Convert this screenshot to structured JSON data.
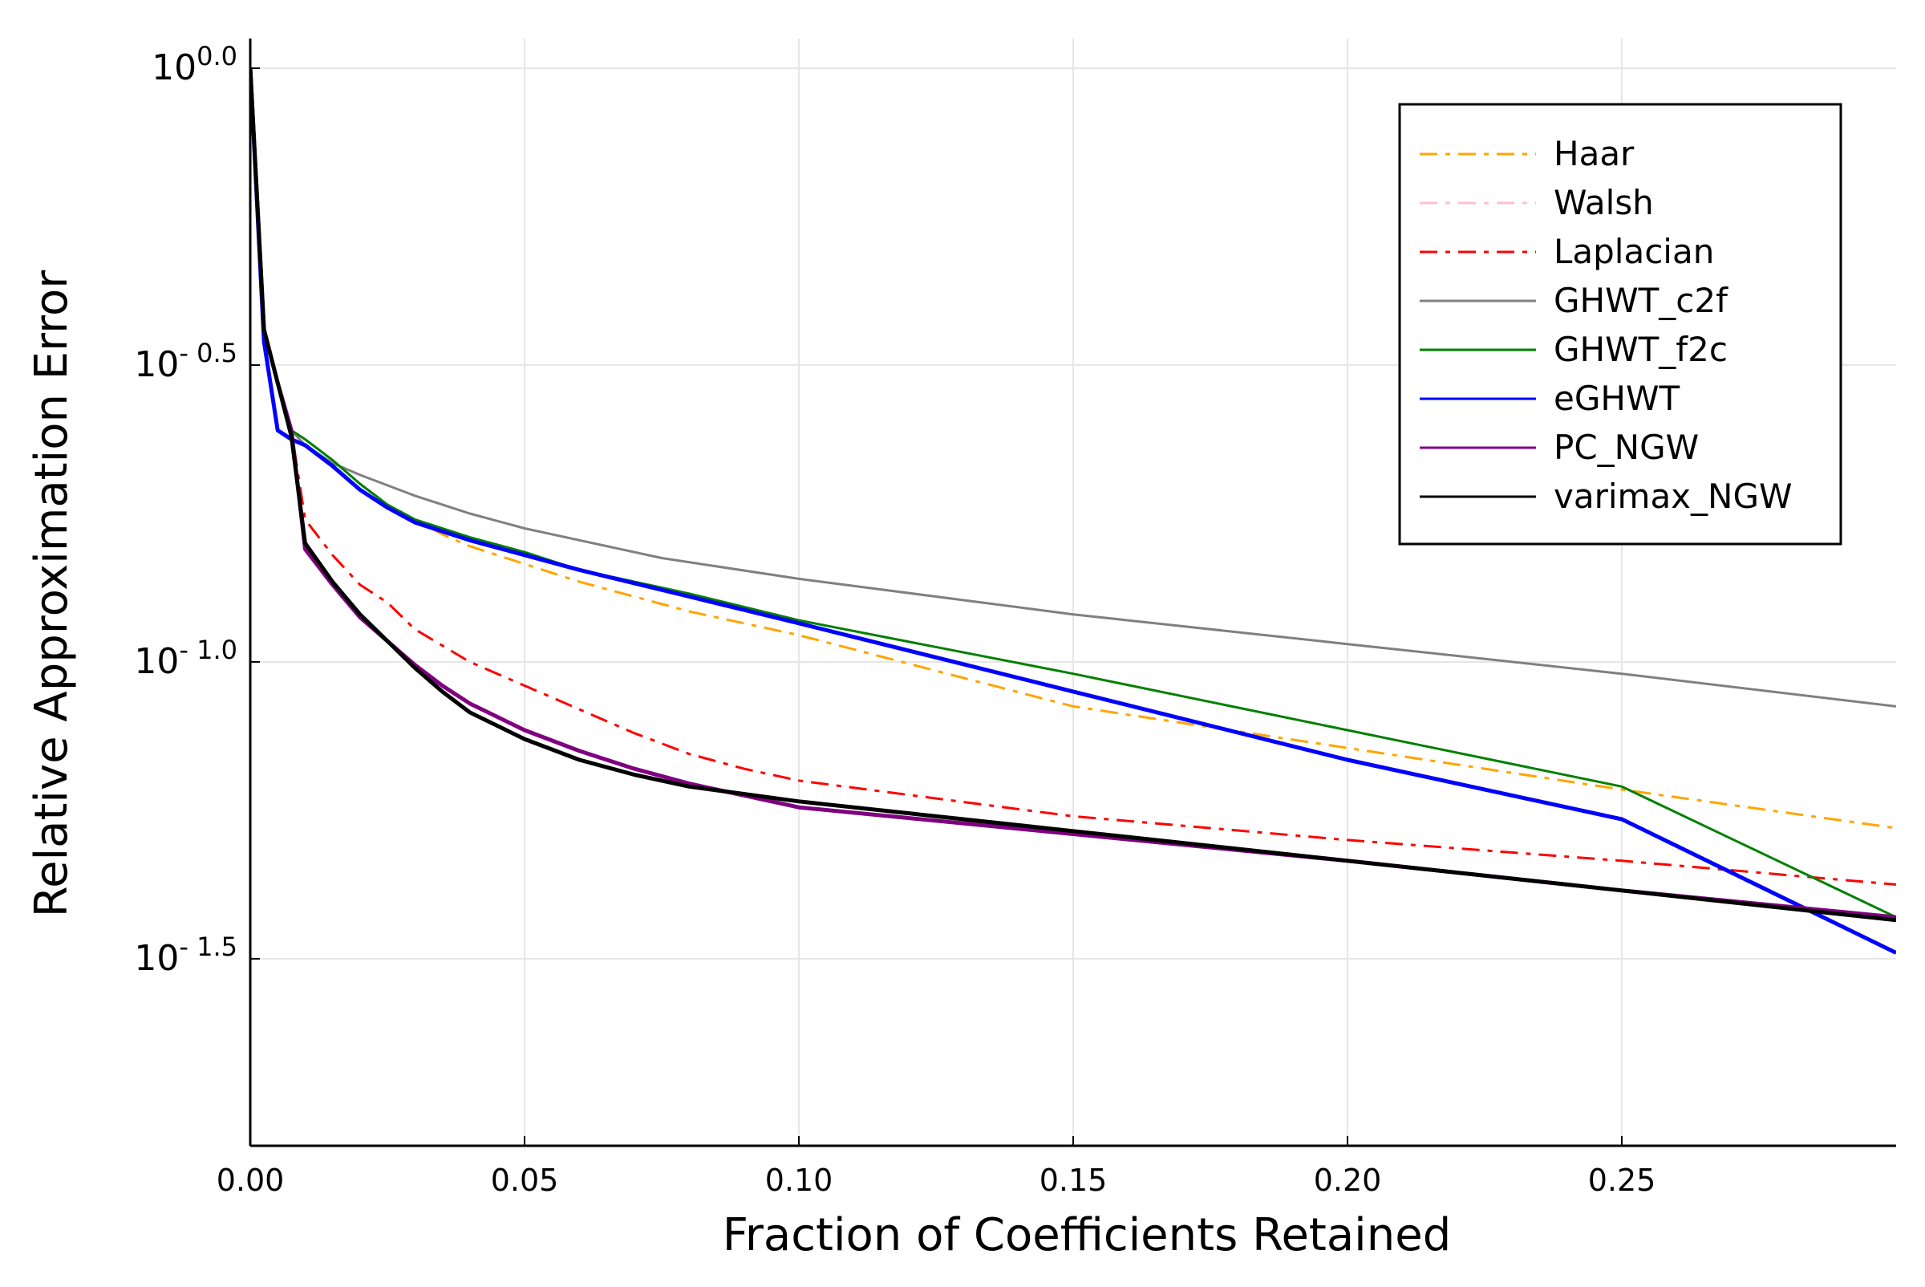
{
  "chart_data": {
    "type": "line",
    "title": "",
    "xlabel": "Fraction of Coefficients Retained",
    "ylabel": "Relative Approximation Error",
    "xlim": [
      0.0,
      0.3
    ],
    "ylim_log10": [
      -1.815,
      0.05
    ],
    "y_scale": "log10",
    "grid": true,
    "legend_position": "top-right",
    "x_ticks": [
      {
        "value": 0.0,
        "label": "0.00"
      },
      {
        "value": 0.05,
        "label": "0.05"
      },
      {
        "value": 0.1,
        "label": "0.10"
      },
      {
        "value": 0.15,
        "label": "0.15"
      },
      {
        "value": 0.2,
        "label": "0.20"
      },
      {
        "value": 0.25,
        "label": "0.25"
      }
    ],
    "y_ticks": [
      {
        "exp": 0.0,
        "base": "10",
        "label": "0.0"
      },
      {
        "exp": -0.5,
        "base": "10",
        "label": "- 0.5"
      },
      {
        "exp": -1.0,
        "base": "10",
        "label": "- 1.0"
      },
      {
        "exp": -1.5,
        "base": "10",
        "label": "- 1.5"
      }
    ],
    "series": [
      {
        "name": "Haar",
        "color": "#FFA500",
        "dash": "dashdot",
        "width": 3,
        "points": [
          [
            0.0,
            0.0
          ],
          [
            0.0025,
            -0.44
          ],
          [
            0.005,
            -0.53
          ],
          [
            0.0075,
            -0.61
          ],
          [
            0.01,
            -0.625
          ],
          [
            0.015,
            -0.66
          ],
          [
            0.02,
            -0.7
          ],
          [
            0.025,
            -0.735
          ],
          [
            0.03,
            -0.76
          ],
          [
            0.035,
            -0.785
          ],
          [
            0.04,
            -0.805
          ],
          [
            0.05,
            -0.835
          ],
          [
            0.06,
            -0.865
          ],
          [
            0.08,
            -0.915
          ],
          [
            0.1,
            -0.955
          ],
          [
            0.15,
            -1.075
          ],
          [
            0.2,
            -1.145
          ],
          [
            0.25,
            -1.215
          ],
          [
            0.3,
            -1.28
          ]
        ]
      },
      {
        "name": "Walsh",
        "color": "#FFC0CB",
        "dash": "dashdot",
        "width": 3,
        "points": [
          [
            0.0,
            0.0
          ],
          [
            0.0025,
            -0.44
          ],
          [
            0.005,
            -0.53
          ],
          [
            0.0075,
            -0.61
          ],
          [
            0.01,
            -0.625
          ]
        ]
      },
      {
        "name": "Laplacian",
        "color": "#FF0000",
        "dash": "dashdot",
        "width": 3,
        "points": [
          [
            0.0,
            0.0
          ],
          [
            0.0025,
            -0.44
          ],
          [
            0.005,
            -0.53
          ],
          [
            0.0075,
            -0.61
          ],
          [
            0.01,
            -0.76
          ],
          [
            0.015,
            -0.82
          ],
          [
            0.02,
            -0.87
          ],
          [
            0.025,
            -0.9
          ],
          [
            0.03,
            -0.945
          ],
          [
            0.04,
            -1.0
          ],
          [
            0.05,
            -1.04
          ],
          [
            0.06,
            -1.08
          ],
          [
            0.07,
            -1.12
          ],
          [
            0.08,
            -1.155
          ],
          [
            0.09,
            -1.18
          ],
          [
            0.1,
            -1.2
          ],
          [
            0.15,
            -1.26
          ],
          [
            0.2,
            -1.3
          ],
          [
            0.25,
            -1.335
          ],
          [
            0.3,
            -1.375
          ]
        ]
      },
      {
        "name": "GHWT_c2f",
        "color": "#808080",
        "dash": "solid",
        "width": 3,
        "points": [
          [
            0.0,
            0.0
          ],
          [
            0.0025,
            -0.44
          ],
          [
            0.005,
            -0.53
          ],
          [
            0.0075,
            -0.61
          ],
          [
            0.01,
            -0.635
          ],
          [
            0.015,
            -0.665
          ],
          [
            0.02,
            -0.685
          ],
          [
            0.03,
            -0.72
          ],
          [
            0.04,
            -0.75
          ],
          [
            0.05,
            -0.775
          ],
          [
            0.06,
            -0.795
          ],
          [
            0.075,
            -0.825
          ],
          [
            0.1,
            -0.86
          ],
          [
            0.15,
            -0.92
          ],
          [
            0.2,
            -0.97
          ],
          [
            0.25,
            -1.02
          ],
          [
            0.3,
            -1.075
          ]
        ]
      },
      {
        "name": "GHWT_f2c",
        "color": "#008000",
        "dash": "solid",
        "width": 3,
        "points": [
          [
            0.0,
            0.0
          ],
          [
            0.0025,
            -0.44
          ],
          [
            0.005,
            -0.53
          ],
          [
            0.0075,
            -0.61
          ],
          [
            0.01,
            -0.625
          ],
          [
            0.015,
            -0.66
          ],
          [
            0.02,
            -0.7
          ],
          [
            0.025,
            -0.735
          ],
          [
            0.03,
            -0.76
          ],
          [
            0.04,
            -0.79
          ],
          [
            0.05,
            -0.815
          ],
          [
            0.06,
            -0.845
          ],
          [
            0.08,
            -0.885
          ],
          [
            0.1,
            -0.93
          ],
          [
            0.15,
            -1.02
          ],
          [
            0.2,
            -1.115
          ],
          [
            0.25,
            -1.21
          ],
          [
            0.3,
            -1.43
          ]
        ]
      },
      {
        "name": "eGHWT",
        "color": "#0000FF",
        "dash": "solid",
        "width": 5,
        "points": [
          [
            0.0,
            0.0
          ],
          [
            0.0025,
            -0.46
          ],
          [
            0.005,
            -0.61
          ],
          [
            0.0075,
            -0.625
          ],
          [
            0.01,
            -0.635
          ],
          [
            0.015,
            -0.67
          ],
          [
            0.02,
            -0.71
          ],
          [
            0.025,
            -0.74
          ],
          [
            0.03,
            -0.765
          ],
          [
            0.04,
            -0.795
          ],
          [
            0.05,
            -0.82
          ],
          [
            0.06,
            -0.845
          ],
          [
            0.08,
            -0.89
          ],
          [
            0.1,
            -0.935
          ],
          [
            0.15,
            -1.05
          ],
          [
            0.2,
            -1.165
          ],
          [
            0.25,
            -1.265
          ],
          [
            0.3,
            -1.49
          ]
        ]
      },
      {
        "name": "PC_NGW",
        "color": "#800080",
        "dash": "solid",
        "width": 5,
        "points": [
          [
            0.0,
            0.0
          ],
          [
            0.0025,
            -0.44
          ],
          [
            0.005,
            -0.53
          ],
          [
            0.0075,
            -0.61
          ],
          [
            0.01,
            -0.81
          ],
          [
            0.015,
            -0.87
          ],
          [
            0.02,
            -0.925
          ],
          [
            0.025,
            -0.965
          ],
          [
            0.03,
            -1.005
          ],
          [
            0.035,
            -1.04
          ],
          [
            0.04,
            -1.07
          ],
          [
            0.05,
            -1.115
          ],
          [
            0.06,
            -1.15
          ],
          [
            0.07,
            -1.18
          ],
          [
            0.08,
            -1.205
          ],
          [
            0.1,
            -1.245
          ],
          [
            0.15,
            -1.29
          ],
          [
            0.2,
            -1.335
          ],
          [
            0.25,
            -1.385
          ],
          [
            0.3,
            -1.43
          ]
        ]
      },
      {
        "name": "varimax_NGW",
        "color": "#000000",
        "dash": "solid",
        "width": 5,
        "points": [
          [
            0.0,
            0.0
          ],
          [
            0.0025,
            -0.44
          ],
          [
            0.005,
            -0.53
          ],
          [
            0.0075,
            -0.62
          ],
          [
            0.01,
            -0.8
          ],
          [
            0.015,
            -0.865
          ],
          [
            0.02,
            -0.92
          ],
          [
            0.025,
            -0.965
          ],
          [
            0.03,
            -1.01
          ],
          [
            0.035,
            -1.05
          ],
          [
            0.04,
            -1.085
          ],
          [
            0.05,
            -1.13
          ],
          [
            0.06,
            -1.165
          ],
          [
            0.07,
            -1.19
          ],
          [
            0.08,
            -1.21
          ],
          [
            0.1,
            -1.235
          ],
          [
            0.15,
            -1.285
          ],
          [
            0.2,
            -1.335
          ],
          [
            0.25,
            -1.385
          ],
          [
            0.3,
            -1.435
          ]
        ]
      }
    ]
  }
}
